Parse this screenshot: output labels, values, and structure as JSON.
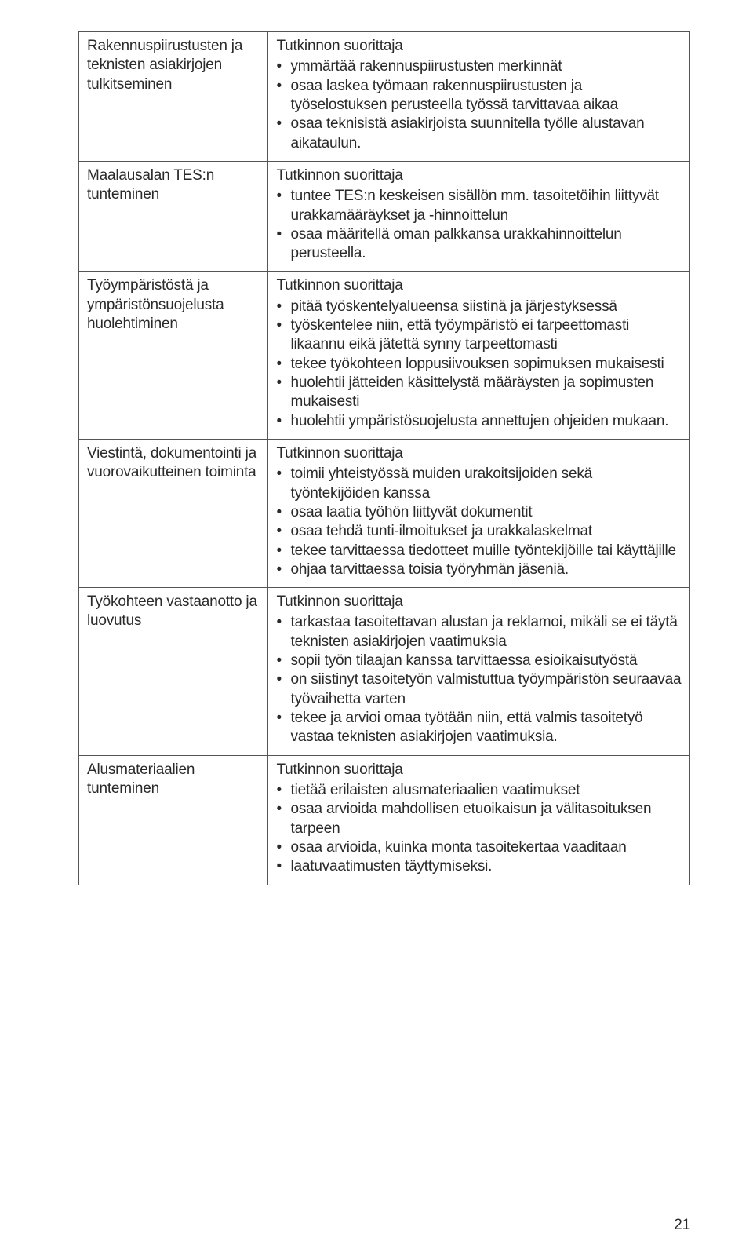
{
  "pageNumber": "21",
  "rows": [
    {
      "left": "Rakennuspiirustusten ja teknisten asiakirjojen tulkitseminen",
      "lead": "Tutkinnon suorittaja",
      "bullets": [
        "ymmärtää rakennuspiirustusten merkinnät",
        "osaa laskea työmaan rakennuspiirustusten ja työselostuksen perusteella työssä tarvittavaa aikaa",
        "osaa teknisistä asiakirjoista suunnitella työlle alustavan aikataulun."
      ]
    },
    {
      "left": "Maalausalan TES:n tunteminen",
      "lead": "Tutkinnon suorittaja",
      "bullets": [
        "tuntee TES:n keskeisen sisällön mm. tasoitetöihin liittyvät urakkamääräykset ja -hinnoittelun",
        "osaa määritellä oman palkkansa urakkahinnoittelun perusteella."
      ]
    },
    {
      "left": "Työympäristöstä ja ympäristönsuojelusta huolehtiminen",
      "lead": "Tutkinnon suorittaja",
      "bullets": [
        "pitää työskentelyalueensa siistinä ja järjestyksessä",
        "työskentelee niin, että työympäristö ei tarpeettomasti likaannu eikä jätettä synny tarpeettomasti",
        "tekee työkohteen loppusiivouksen sopimuksen mukaisesti",
        "huolehtii jätteiden käsittelystä määräysten ja sopimusten mukaisesti",
        "huolehtii ympäristösuojelusta annettujen ohjeiden mukaan."
      ]
    },
    {
      "left": "Viestintä, dokumentointi ja vuorovaikutteinen toiminta",
      "lead": "Tutkinnon suorittaja",
      "bullets": [
        "toimii yhteistyössä muiden urakoitsijoiden sekä työntekijöiden kanssa",
        "osaa laatia työhön liittyvät dokumentit",
        "osaa tehdä tunti-ilmoitukset ja urakkalaskelmat",
        "tekee tarvittaessa tiedotteet muille työntekijöille tai käyttäjille",
        "ohjaa tarvittaessa toisia työryhmän jäseniä."
      ]
    },
    {
      "left": "Työkohteen vastaanotto ja luovutus",
      "lead": "Tutkinnon suorittaja",
      "bullets": [
        "tarkastaa tasoitettavan alustan ja reklamoi, mikäli se ei täytä teknisten asiakirjojen vaatimuksia",
        "sopii työn tilaajan kanssa tarvittaessa esioikaisutyöstä",
        "on siistinyt tasoitetyön valmistuttua työympäristön seuraavaa työvaihetta varten",
        "tekee ja arvioi omaa työtään niin, että valmis tasoitetyö vastaa teknisten asiakirjojen vaatimuksia."
      ]
    },
    {
      "left": "Alusmateriaalien tunteminen",
      "lead": "Tutkinnon suorittaja",
      "bullets": [
        "tietää erilaisten alusmateriaalien vaatimukset",
        "osaa arvioida mahdollisen etuoikaisun ja välitasoituksen tarpeen",
        "osaa arvioida, kuinka monta tasoitekertaa vaaditaan",
        "laatuvaatimusten täyttymiseksi."
      ]
    }
  ]
}
